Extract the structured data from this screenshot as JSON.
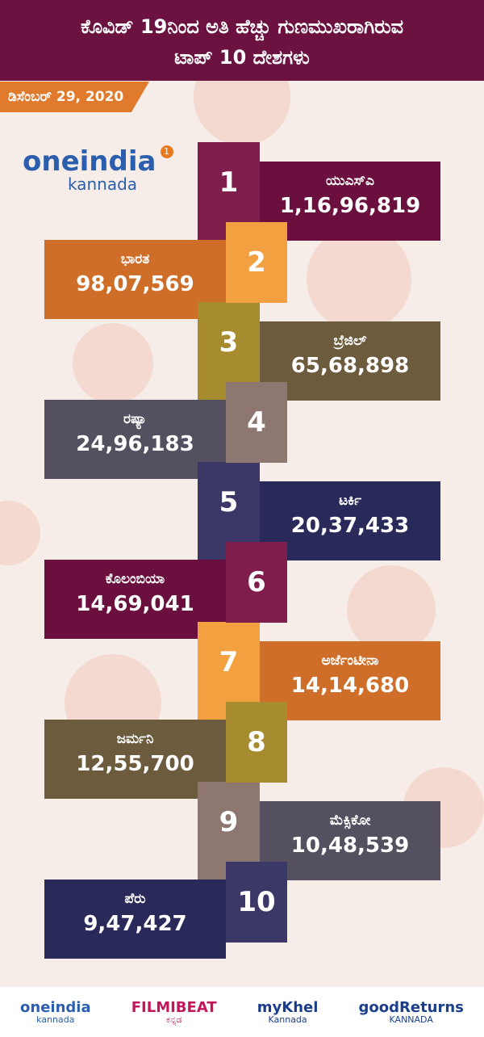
{
  "header": {
    "title_lines": [
      "ಕೊವಿಡ್ 19ನಿಂದ ಅತಿ ಹೆಚ್ಚು ಗುಣಮುಖರಾಗಿರುವ",
      "ಟಾಪ್ 10 ದೇಶಗಳು"
    ],
    "date": "ಡಿಸೆಂಬರ್ 29, 2020"
  },
  "logo": {
    "name": "oneindia",
    "sub": "kannada",
    "badge": "1"
  },
  "items": [
    {
      "rank": "1",
      "country": "ಯುಎಸ್ಎ",
      "count": "1,16,96,819"
    },
    {
      "rank": "2",
      "country": "ಭಾರತ",
      "count": "98,07,569"
    },
    {
      "rank": "3",
      "country": "ಬ್ರೆಜಿಲ್",
      "count": "65,68,898"
    },
    {
      "rank": "4",
      "country": "ರಷ್ಯಾ",
      "count": "24,96,183"
    },
    {
      "rank": "5",
      "country": "ಟರ್ಕಿ",
      "count": "20,37,433"
    },
    {
      "rank": "6",
      "country": "ಕೊಲಂಬಿಯಾ",
      "count": "14,69,041"
    },
    {
      "rank": "7",
      "country": "ಅರ್ಜೆಂಟೀನಾ",
      "count": "14,14,680"
    },
    {
      "rank": "8",
      "country": "ಜರ್ಮನಿ",
      "count": "12,55,700"
    },
    {
      "rank": "9",
      "country": "ಮೆಕ್ಸಿಕೋ",
      "count": "10,48,539"
    },
    {
      "rank": "10",
      "country": "ಪೆರು",
      "count": "9,47,427"
    }
  ],
  "footer": {
    "brands": [
      {
        "name": "oneindia",
        "sub": "kannada"
      },
      {
        "name": "FILMIBEAT",
        "sub": "ಕನ್ನಡ"
      },
      {
        "name": "myKhel",
        "sub": "Kannada"
      },
      {
        "name": "goodReturns",
        "sub": "KANNADA"
      }
    ]
  }
}
